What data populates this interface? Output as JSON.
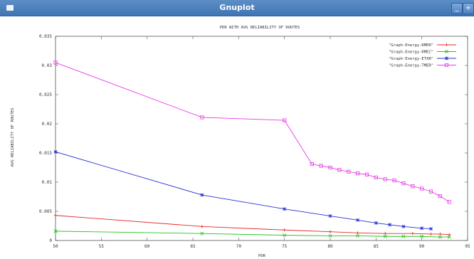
{
  "window": {
    "title": "Gnuplot",
    "icon": "app-window-icon",
    "buttons": [
      {
        "name": "minimize-button",
        "glyph": "_"
      },
      {
        "name": "maximize-button",
        "glyph": "+"
      }
    ]
  },
  "chart_data": {
    "type": "line",
    "title": "PDR WITH AVG RELIABILITY OF ROUTES",
    "xlabel": "PDR",
    "ylabel": "AVG RELIABILITY OF ROUTES",
    "xlim": [
      50,
      95
    ],
    "ylim": [
      0,
      0.035
    ],
    "x_ticks": [
      "50",
      "55",
      "60",
      "65",
      "70",
      "75",
      "80",
      "85",
      "90",
      "95"
    ],
    "y_ticks": [
      "0",
      "0.005",
      "0.01",
      "0.015",
      "0.02",
      "0.025",
      "0.03",
      "0.035"
    ],
    "grid": false,
    "legend_position": "top-right",
    "series": [
      {
        "name": "\"Graph-Energy-RMER\"",
        "color": "#e8272a",
        "marker": "plus",
        "points": [
          [
            50,
            0.0043
          ],
          [
            66,
            0.0024
          ],
          [
            75,
            0.0018
          ],
          [
            80,
            0.0015
          ],
          [
            83,
            0.0013
          ],
          [
            86,
            0.0012
          ],
          [
            89,
            0.0012
          ],
          [
            91,
            0.0011
          ],
          [
            92,
            0.0011
          ],
          [
            93,
            0.001
          ]
        ]
      },
      {
        "name": "\"Graph-Energy-RMEC\"",
        "color": "#22c424",
        "marker": "cross",
        "points": [
          [
            50,
            0.0016
          ],
          [
            66,
            0.0012
          ],
          [
            75,
            0.0009
          ],
          [
            80,
            0.0008
          ],
          [
            83,
            0.0008
          ],
          [
            86,
            0.0007
          ],
          [
            88,
            0.0007
          ],
          [
            90,
            0.0007
          ],
          [
            92,
            0.0006
          ],
          [
            93,
            0.0006
          ]
        ]
      },
      {
        "name": "\"Graph-Energy-ETXR\"",
        "color": "#2a2fd2",
        "marker": "star",
        "points": [
          [
            50,
            0.0152
          ],
          [
            66,
            0.0078
          ],
          [
            75,
            0.0054
          ],
          [
            80,
            0.0042
          ],
          [
            83,
            0.0035
          ],
          [
            85,
            0.003
          ],
          [
            86.5,
            0.0027
          ],
          [
            88,
            0.0024
          ],
          [
            90,
            0.0021
          ],
          [
            91,
            0.002
          ]
        ]
      },
      {
        "name": "\"Graph-Energy-TMER\"",
        "color": "#e83ae8",
        "marker": "square",
        "points": [
          [
            50,
            0.0305
          ],
          [
            66,
            0.0211
          ],
          [
            75,
            0.0206
          ],
          [
            78,
            0.0131
          ],
          [
            79,
            0.0128
          ],
          [
            80,
            0.0125
          ],
          [
            81,
            0.0121
          ],
          [
            82,
            0.0118
          ],
          [
            83,
            0.0115
          ],
          [
            84,
            0.0113
          ],
          [
            85,
            0.0108
          ],
          [
            86,
            0.0105
          ],
          [
            87,
            0.0103
          ],
          [
            88,
            0.0098
          ],
          [
            89,
            0.0093
          ],
          [
            90,
            0.0089
          ],
          [
            91,
            0.0084
          ],
          [
            92,
            0.0076
          ],
          [
            93,
            0.0066
          ]
        ]
      }
    ]
  }
}
